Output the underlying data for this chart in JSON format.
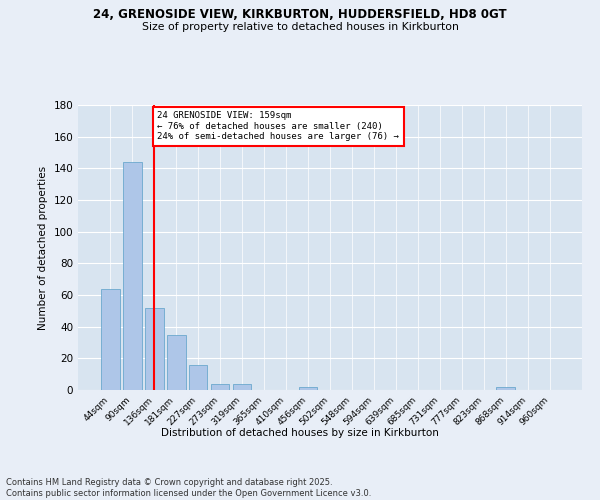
{
  "title1": "24, GRENOSIDE VIEW, KIRKBURTON, HUDDERSFIELD, HD8 0GT",
  "title2": "Size of property relative to detached houses in Kirkburton",
  "xlabel": "Distribution of detached houses by size in Kirkburton",
  "ylabel": "Number of detached properties",
  "categories": [
    "44sqm",
    "90sqm",
    "136sqm",
    "181sqm",
    "227sqm",
    "273sqm",
    "319sqm",
    "365sqm",
    "410sqm",
    "456sqm",
    "502sqm",
    "548sqm",
    "594sqm",
    "639sqm",
    "685sqm",
    "731sqm",
    "777sqm",
    "823sqm",
    "868sqm",
    "914sqm",
    "960sqm"
  ],
  "values": [
    64,
    144,
    52,
    35,
    16,
    4,
    4,
    0,
    0,
    2,
    0,
    0,
    0,
    0,
    0,
    0,
    0,
    0,
    2,
    0,
    0
  ],
  "bar_color": "#aec6e8",
  "bar_edge_color": "#5a9fc8",
  "red_line_index": 2,
  "ylim": [
    0,
    180
  ],
  "yticks": [
    0,
    20,
    40,
    60,
    80,
    100,
    120,
    140,
    160,
    180
  ],
  "annotation_line1": "24 GRENOSIDE VIEW: 159sqm",
  "annotation_line2": "← 76% of detached houses are smaller (240)",
  "annotation_line3": "24% of semi-detached houses are larger (76) →",
  "footer1": "Contains HM Land Registry data © Crown copyright and database right 2025.",
  "footer2": "Contains public sector information licensed under the Open Government Licence v3.0.",
  "bg_color": "#e8eef7",
  "plot_bg_color": "#d8e4f0"
}
